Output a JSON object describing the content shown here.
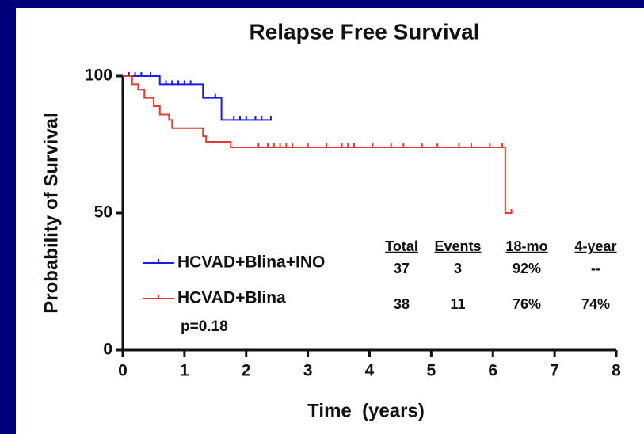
{
  "chart_data": {
    "type": "km",
    "title": "Relapse Free Survival",
    "x_label": "Time  (years)",
    "y_label": "Probability of Survival",
    "xlim": [
      0,
      8
    ],
    "xticks": [
      0,
      1,
      2,
      3,
      4,
      5,
      6,
      7,
      8
    ],
    "ylim": [
      0,
      100
    ],
    "yticks": [
      0,
      50,
      100
    ],
    "series": [
      {
        "name": "HCVAD+Blina+INO",
        "color": "#1a1aff",
        "x": [
          0,
          0.6,
          1.3,
          1.6,
          2.4
        ],
        "values": [
          100,
          97,
          92,
          84,
          84
        ],
        "censored_x": [
          0.1,
          0.2,
          0.3,
          0.45,
          0.7,
          0.8,
          0.9,
          1.0,
          1.1,
          1.5,
          1.8,
          1.9,
          2.0,
          2.15,
          2.25,
          2.4
        ],
        "censored_y": [
          100,
          100,
          100,
          100,
          97,
          97,
          97,
          97,
          97,
          92,
          84,
          84,
          84,
          84,
          84,
          84
        ]
      },
      {
        "name": "HCVAD+Blina",
        "color": "#e8392f",
        "x": [
          0,
          0.15,
          0.25,
          0.35,
          0.5,
          0.6,
          0.75,
          0.8,
          1.3,
          1.35,
          1.75,
          6.2,
          6.3
        ],
        "values": [
          100,
          97,
          95,
          92,
          89,
          86,
          84,
          81,
          78,
          76,
          74,
          50,
          50
        ],
        "censored_x": [
          2.2,
          2.35,
          2.45,
          2.55,
          2.65,
          2.75,
          3.0,
          3.3,
          3.55,
          3.65,
          3.75,
          4.05,
          4.35,
          4.55,
          4.85,
          5.1,
          5.45,
          5.65,
          5.95,
          6.15,
          6.3
        ],
        "censored_y": [
          74,
          74,
          74,
          74,
          74,
          74,
          74,
          74,
          74,
          74,
          74,
          74,
          74,
          74,
          74,
          74,
          74,
          74,
          74,
          74,
          50
        ]
      }
    ],
    "table": {
      "columns": [
        "Total",
        "Events",
        "18-mo",
        "4-year"
      ],
      "rows": [
        [
          "37",
          "3",
          "92%",
          "--"
        ],
        [
          "38",
          "11",
          "76%",
          "74%"
        ]
      ]
    },
    "annotation": "p=0.18"
  }
}
